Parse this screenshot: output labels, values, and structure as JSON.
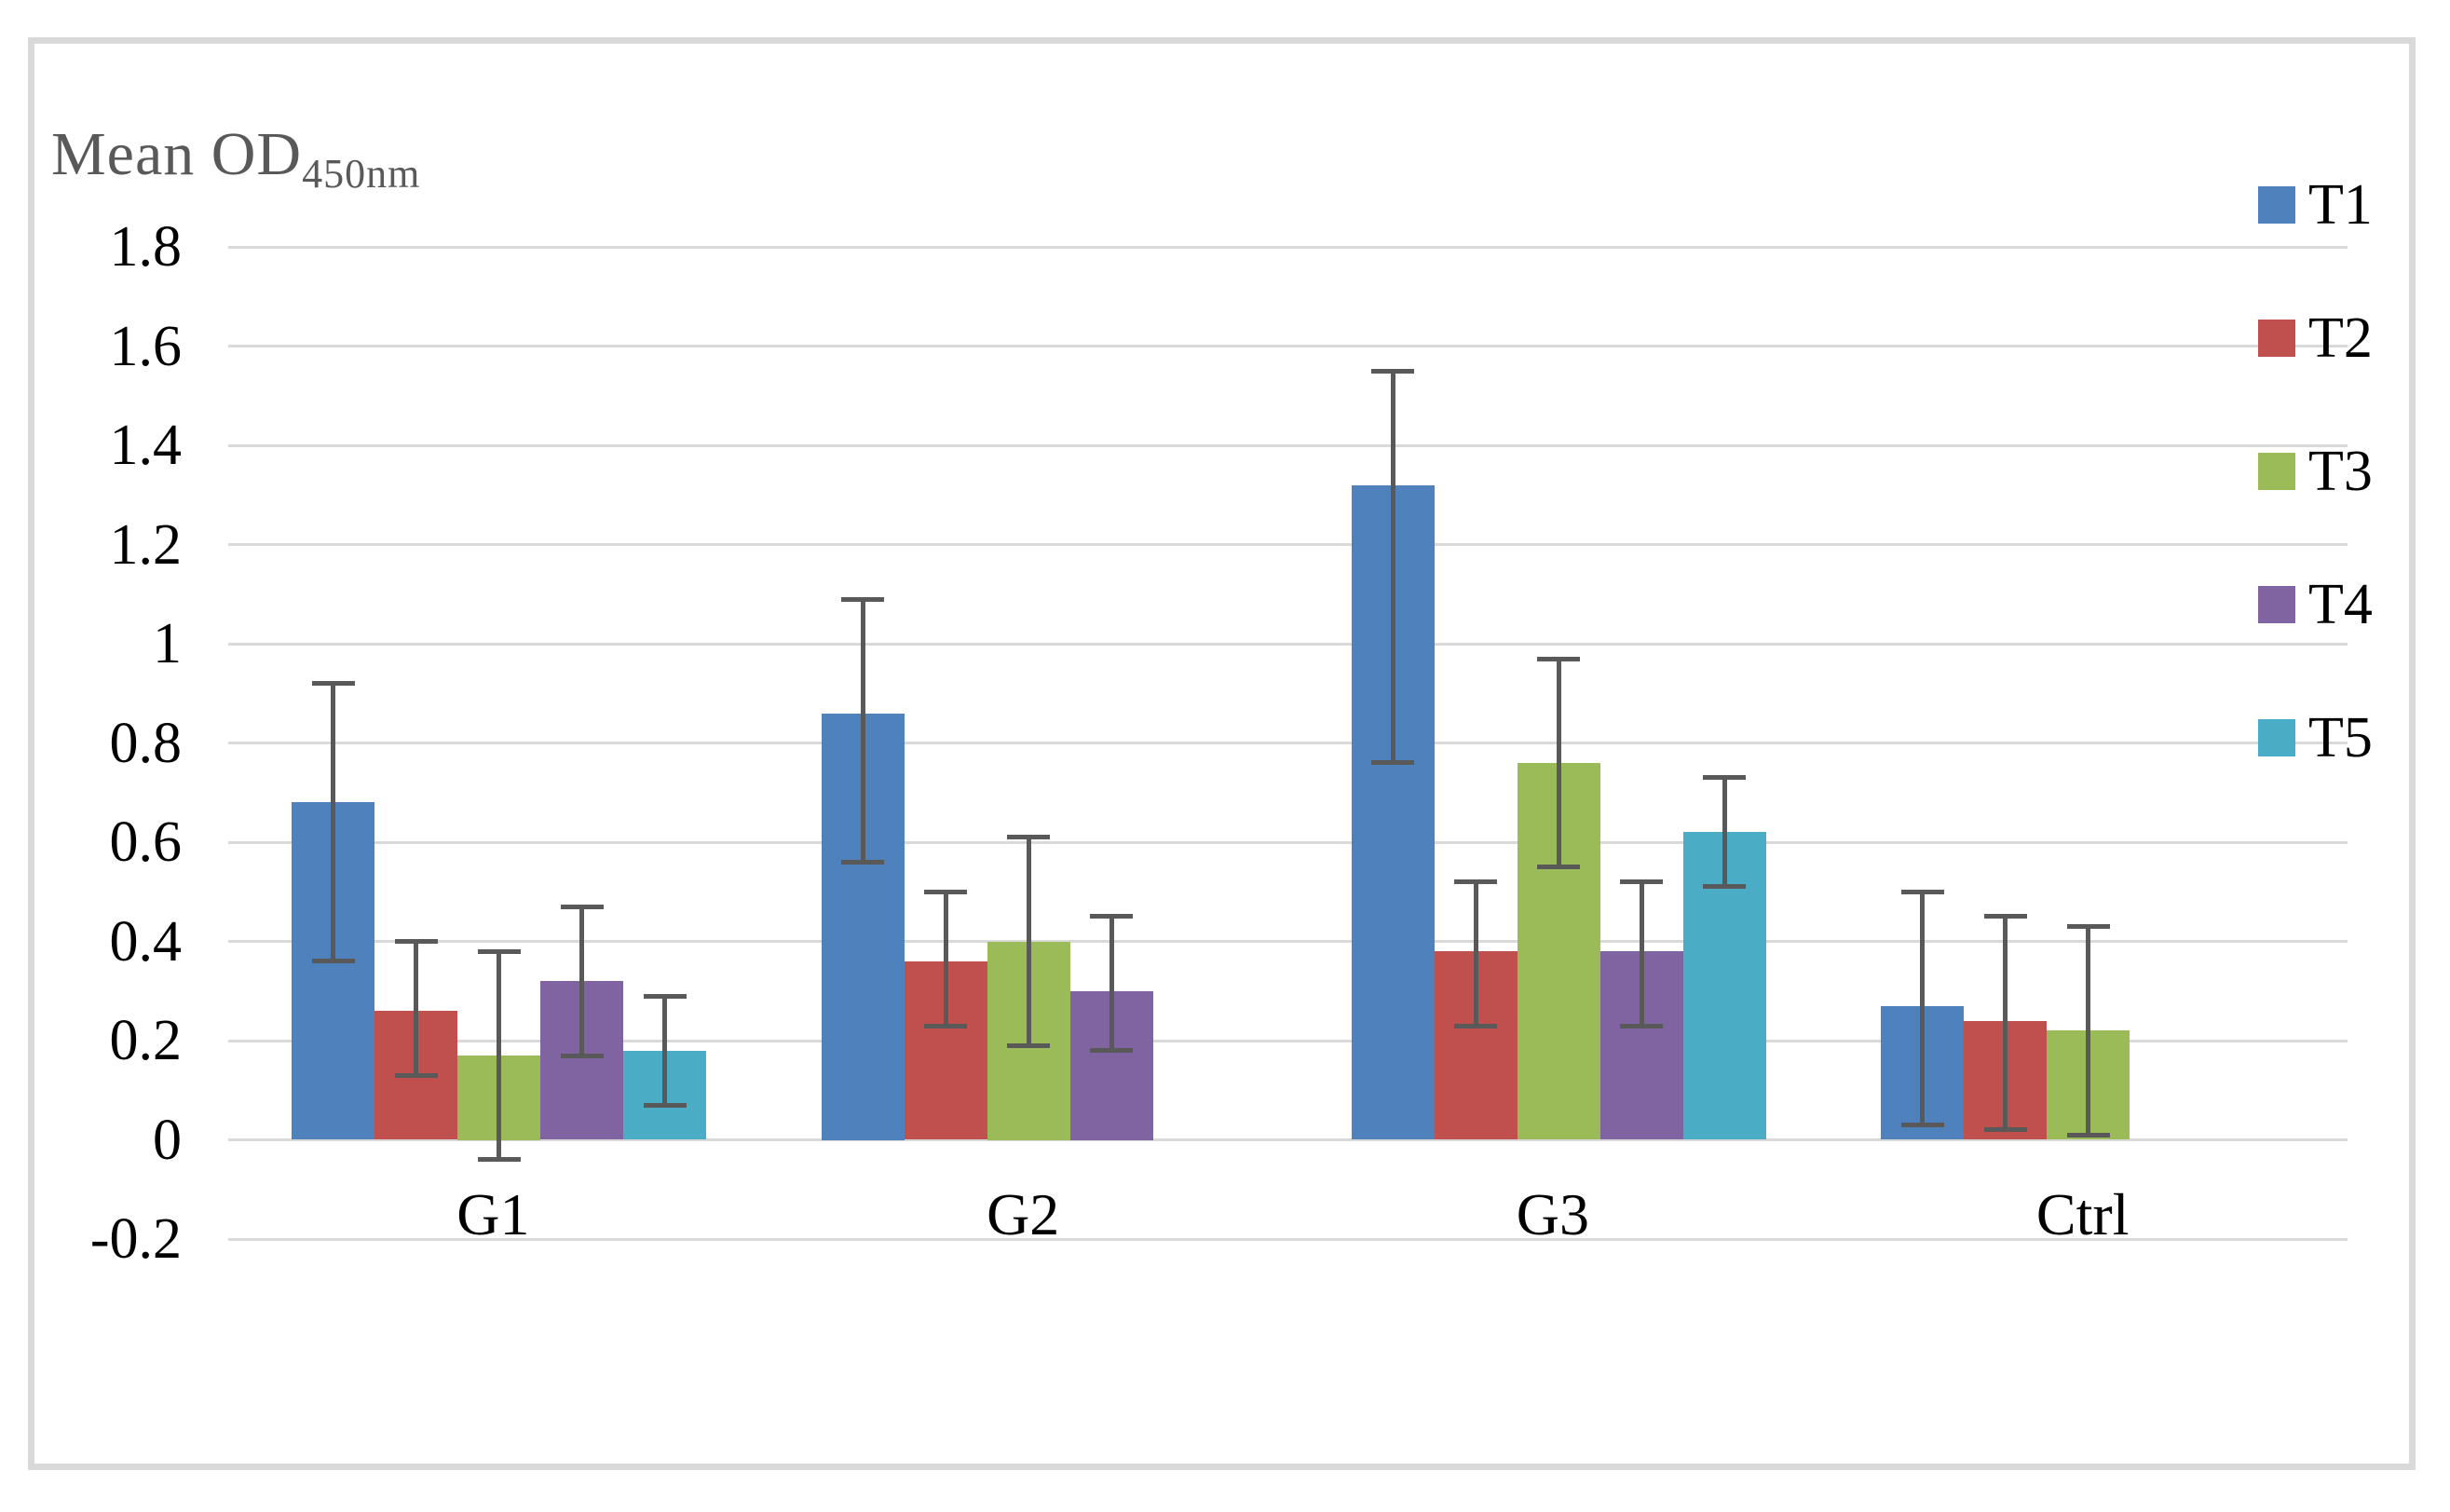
{
  "chart_data": {
    "type": "bar",
    "title": "Mean OD",
    "title_subscript": "450nm",
    "xlabel": "",
    "ylabel": "Mean OD 450nm",
    "categories": [
      "G1",
      "G2",
      "G3",
      "Ctrl"
    ],
    "series": [
      {
        "name": "T1",
        "color": "#4F81BD",
        "values": [
          0.68,
          0.86,
          1.32,
          0.27
        ],
        "error_low": [
          0.36,
          0.56,
          0.76,
          0.03
        ],
        "error_high": [
          0.92,
          1.09,
          1.55,
          0.5
        ]
      },
      {
        "name": "T2",
        "color": "#C0504D",
        "values": [
          0.26,
          0.36,
          0.38,
          0.24
        ],
        "error_low": [
          0.13,
          0.23,
          0.23,
          0.02
        ],
        "error_high": [
          0.4,
          0.5,
          0.52,
          0.45
        ]
      },
      {
        "name": "T3",
        "color": "#9BBB59",
        "values": [
          0.17,
          0.4,
          0.76,
          0.22
        ],
        "error_low": [
          -0.04,
          0.19,
          0.55,
          0.01
        ],
        "error_high": [
          0.38,
          0.61,
          0.97,
          0.43
        ]
      },
      {
        "name": "T4",
        "color": "#8064A2",
        "values": [
          0.32,
          0.3,
          0.38,
          null
        ],
        "error_low": [
          0.17,
          0.18,
          0.23,
          null
        ],
        "error_high": [
          0.47,
          0.45,
          0.52,
          null
        ]
      },
      {
        "name": "T5",
        "color": "#4BACC6",
        "values": [
          0.18,
          null,
          0.62,
          null
        ],
        "error_low": [
          0.07,
          null,
          0.51,
          null
        ],
        "error_high": [
          0.29,
          null,
          0.73,
          null
        ]
      }
    ],
    "y_ticks": [
      {
        "label": "1.8",
        "value": 1.8
      },
      {
        "label": "1.6",
        "value": 1.6
      },
      {
        "label": "1.4",
        "value": 1.4
      },
      {
        "label": "1.2",
        "value": 1.2
      },
      {
        "label": "1",
        "value": 1.0
      },
      {
        "label": "0.8",
        "value": 0.8
      },
      {
        "label": "0.6",
        "value": 0.6
      },
      {
        "label": "0.4",
        "value": 0.4
      },
      {
        "label": "0.2",
        "value": 0.2
      },
      {
        "label": "0",
        "value": 0.0
      },
      {
        "label": "-0.2",
        "value": -0.2
      }
    ],
    "ylim": [
      -0.2,
      1.8
    ],
    "grid": true,
    "legend_position": "right",
    "legend_labels": [
      "T1",
      "T2",
      "T3",
      "T4",
      "T5"
    ],
    "gridline_color": "#D9D9D9",
    "frame_border_color": "#D9D9D9",
    "error_bar_color": "#595959",
    "title_color": "#595959",
    "text_color": "#000000"
  }
}
